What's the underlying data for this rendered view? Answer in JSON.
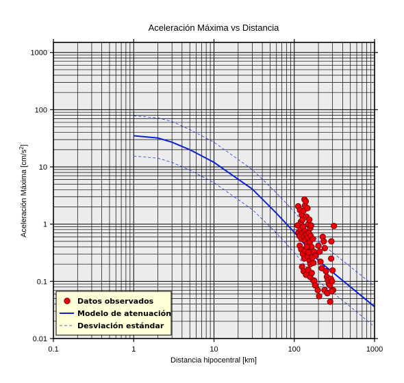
{
  "chart_data": {
    "type": "scatter",
    "title": "Aceleración Máxima vs Distancia",
    "xlabel": "Distancia hipocentral [km]",
    "ylabel": "Aceleración Máxima [cm/s",
    "ylabel_superscript": "2",
    "ylabel_suffix": "]",
    "xscale": "log",
    "yscale": "log",
    "xlim": [
      0.1,
      1000
    ],
    "ylim": [
      0.01,
      1500
    ],
    "grid": true,
    "xticks": [
      {
        "value": 0.1,
        "label": "0.1"
      },
      {
        "value": 1,
        "label": "1"
      },
      {
        "value": 10,
        "label": "10"
      },
      {
        "value": 100,
        "label": "100"
      },
      {
        "value": 1000,
        "label": "1000"
      }
    ],
    "yticks": [
      {
        "value": 0.01,
        "label": "0.01"
      },
      {
        "value": 0.1,
        "label": "0.1"
      },
      {
        "value": 1,
        "label": "1"
      },
      {
        "value": 10,
        "label": "10"
      },
      {
        "value": 100,
        "label": "100"
      },
      {
        "value": 1000,
        "label": "1000"
      }
    ],
    "legend_position": "bottom-left",
    "colors": {
      "plot_background": "#ececec",
      "grid": "#000000",
      "observed": "#e8000b",
      "model": "#0a1fd6",
      "deviation": "#1a2ff0",
      "legend_background": "#ffffd8"
    },
    "series": [
      {
        "name": "Datos observados",
        "kind": "markers",
        "points": [
          [
            112,
            2.05
          ],
          [
            118,
            1.75
          ],
          [
            121,
            1.1
          ],
          [
            124,
            1.45
          ],
          [
            127,
            1.2
          ],
          [
            130,
            1.7
          ],
          [
            134,
            2.7
          ],
          [
            136,
            2.1
          ],
          [
            139,
            2.5
          ],
          [
            142,
            1.35
          ],
          [
            146,
            1.9
          ],
          [
            150,
            1.0
          ],
          [
            154,
            1.2
          ],
          [
            158,
            0.85
          ],
          [
            162,
            0.95
          ],
          [
            110,
            0.95
          ],
          [
            113,
            0.72
          ],
          [
            116,
            0.62
          ],
          [
            120,
            0.8
          ],
          [
            123,
            0.55
          ],
          [
            126,
            0.7
          ],
          [
            129,
            0.9
          ],
          [
            132,
            0.6
          ],
          [
            135,
            0.75
          ],
          [
            138,
            0.52
          ],
          [
            141,
            0.66
          ],
          [
            144,
            0.45
          ],
          [
            148,
            0.58
          ],
          [
            152,
            0.7
          ],
          [
            156,
            0.48
          ],
          [
            160,
            0.62
          ],
          [
            164,
            0.4
          ],
          [
            170,
            0.55
          ],
          [
            176,
            0.33
          ],
          [
            183,
            0.28
          ],
          [
            117,
            0.42
          ],
          [
            122,
            0.36
          ],
          [
            128,
            0.3
          ],
          [
            133,
            0.25
          ],
          [
            137,
            0.34
          ],
          [
            143,
            0.4
          ],
          [
            147,
            0.27
          ],
          [
            151,
            0.32
          ],
          [
            155,
            0.23
          ],
          [
            159,
            0.2
          ],
          [
            167,
            0.26
          ],
          [
            173,
            0.21
          ],
          [
            125,
            0.18
          ],
          [
            131,
            0.15
          ],
          [
            140,
            0.13
          ],
          [
            149,
            0.16
          ],
          [
            157,
            0.12
          ],
          [
            165,
            0.14
          ],
          [
            171,
            0.105
          ],
          [
            178,
            0.1
          ],
          [
            200,
            0.42
          ],
          [
            207,
            0.33
          ],
          [
            212,
            0.22
          ],
          [
            220,
            0.17
          ],
          [
            226,
            0.6
          ],
          [
            233,
            0.5
          ],
          [
            240,
            0.38
          ],
          [
            248,
            0.15
          ],
          [
            255,
            0.12
          ],
          [
            262,
            0.105
          ],
          [
            270,
            0.09
          ],
          [
            278,
            0.085
          ],
          [
            286,
            0.11
          ],
          [
            295,
            0.1
          ],
          [
            290,
            0.5
          ],
          [
            288,
            0.25
          ],
          [
            300,
            0.155
          ],
          [
            305,
            0.07
          ],
          [
            312,
            0.93
          ],
          [
            196,
            0.07
          ],
          [
            204,
            0.055
          ],
          [
            238,
            0.07
          ],
          [
            258,
            0.062
          ],
          [
            280,
            0.044
          ],
          [
            292,
            0.067
          ],
          [
            182,
            0.085
          ]
        ]
      },
      {
        "name": "Modelo de atenuación",
        "kind": "solid",
        "points": [
          [
            1,
            35
          ],
          [
            2,
            32
          ],
          [
            3,
            27
          ],
          [
            5,
            20
          ],
          [
            10,
            12
          ],
          [
            30,
            4.1
          ],
          [
            60,
            1.55
          ],
          [
            100,
            0.72
          ],
          [
            200,
            0.23
          ],
          [
            500,
            0.08
          ],
          [
            1000,
            0.036
          ]
        ]
      },
      {
        "name": "Desviación estándar",
        "kind": "dashed",
        "points": [
          [
            1,
            78
          ],
          [
            2,
            72
          ],
          [
            3,
            62
          ],
          [
            5,
            45
          ],
          [
            10,
            27
          ],
          [
            30,
            9
          ],
          [
            60,
            3.5
          ],
          [
            100,
            1.65
          ],
          [
            200,
            0.5
          ],
          [
            500,
            0.18
          ],
          [
            1000,
            0.082
          ]
        ]
      },
      {
        "kind": "dashed",
        "points": [
          [
            1,
            15.5
          ],
          [
            2,
            14.2
          ],
          [
            3,
            12
          ],
          [
            5,
            8.8
          ],
          [
            10,
            5.3
          ],
          [
            30,
            1.8
          ],
          [
            60,
            0.7
          ],
          [
            100,
            0.32
          ],
          [
            200,
            0.1
          ],
          [
            500,
            0.036
          ],
          [
            1000,
            0.016
          ]
        ]
      }
    ]
  }
}
